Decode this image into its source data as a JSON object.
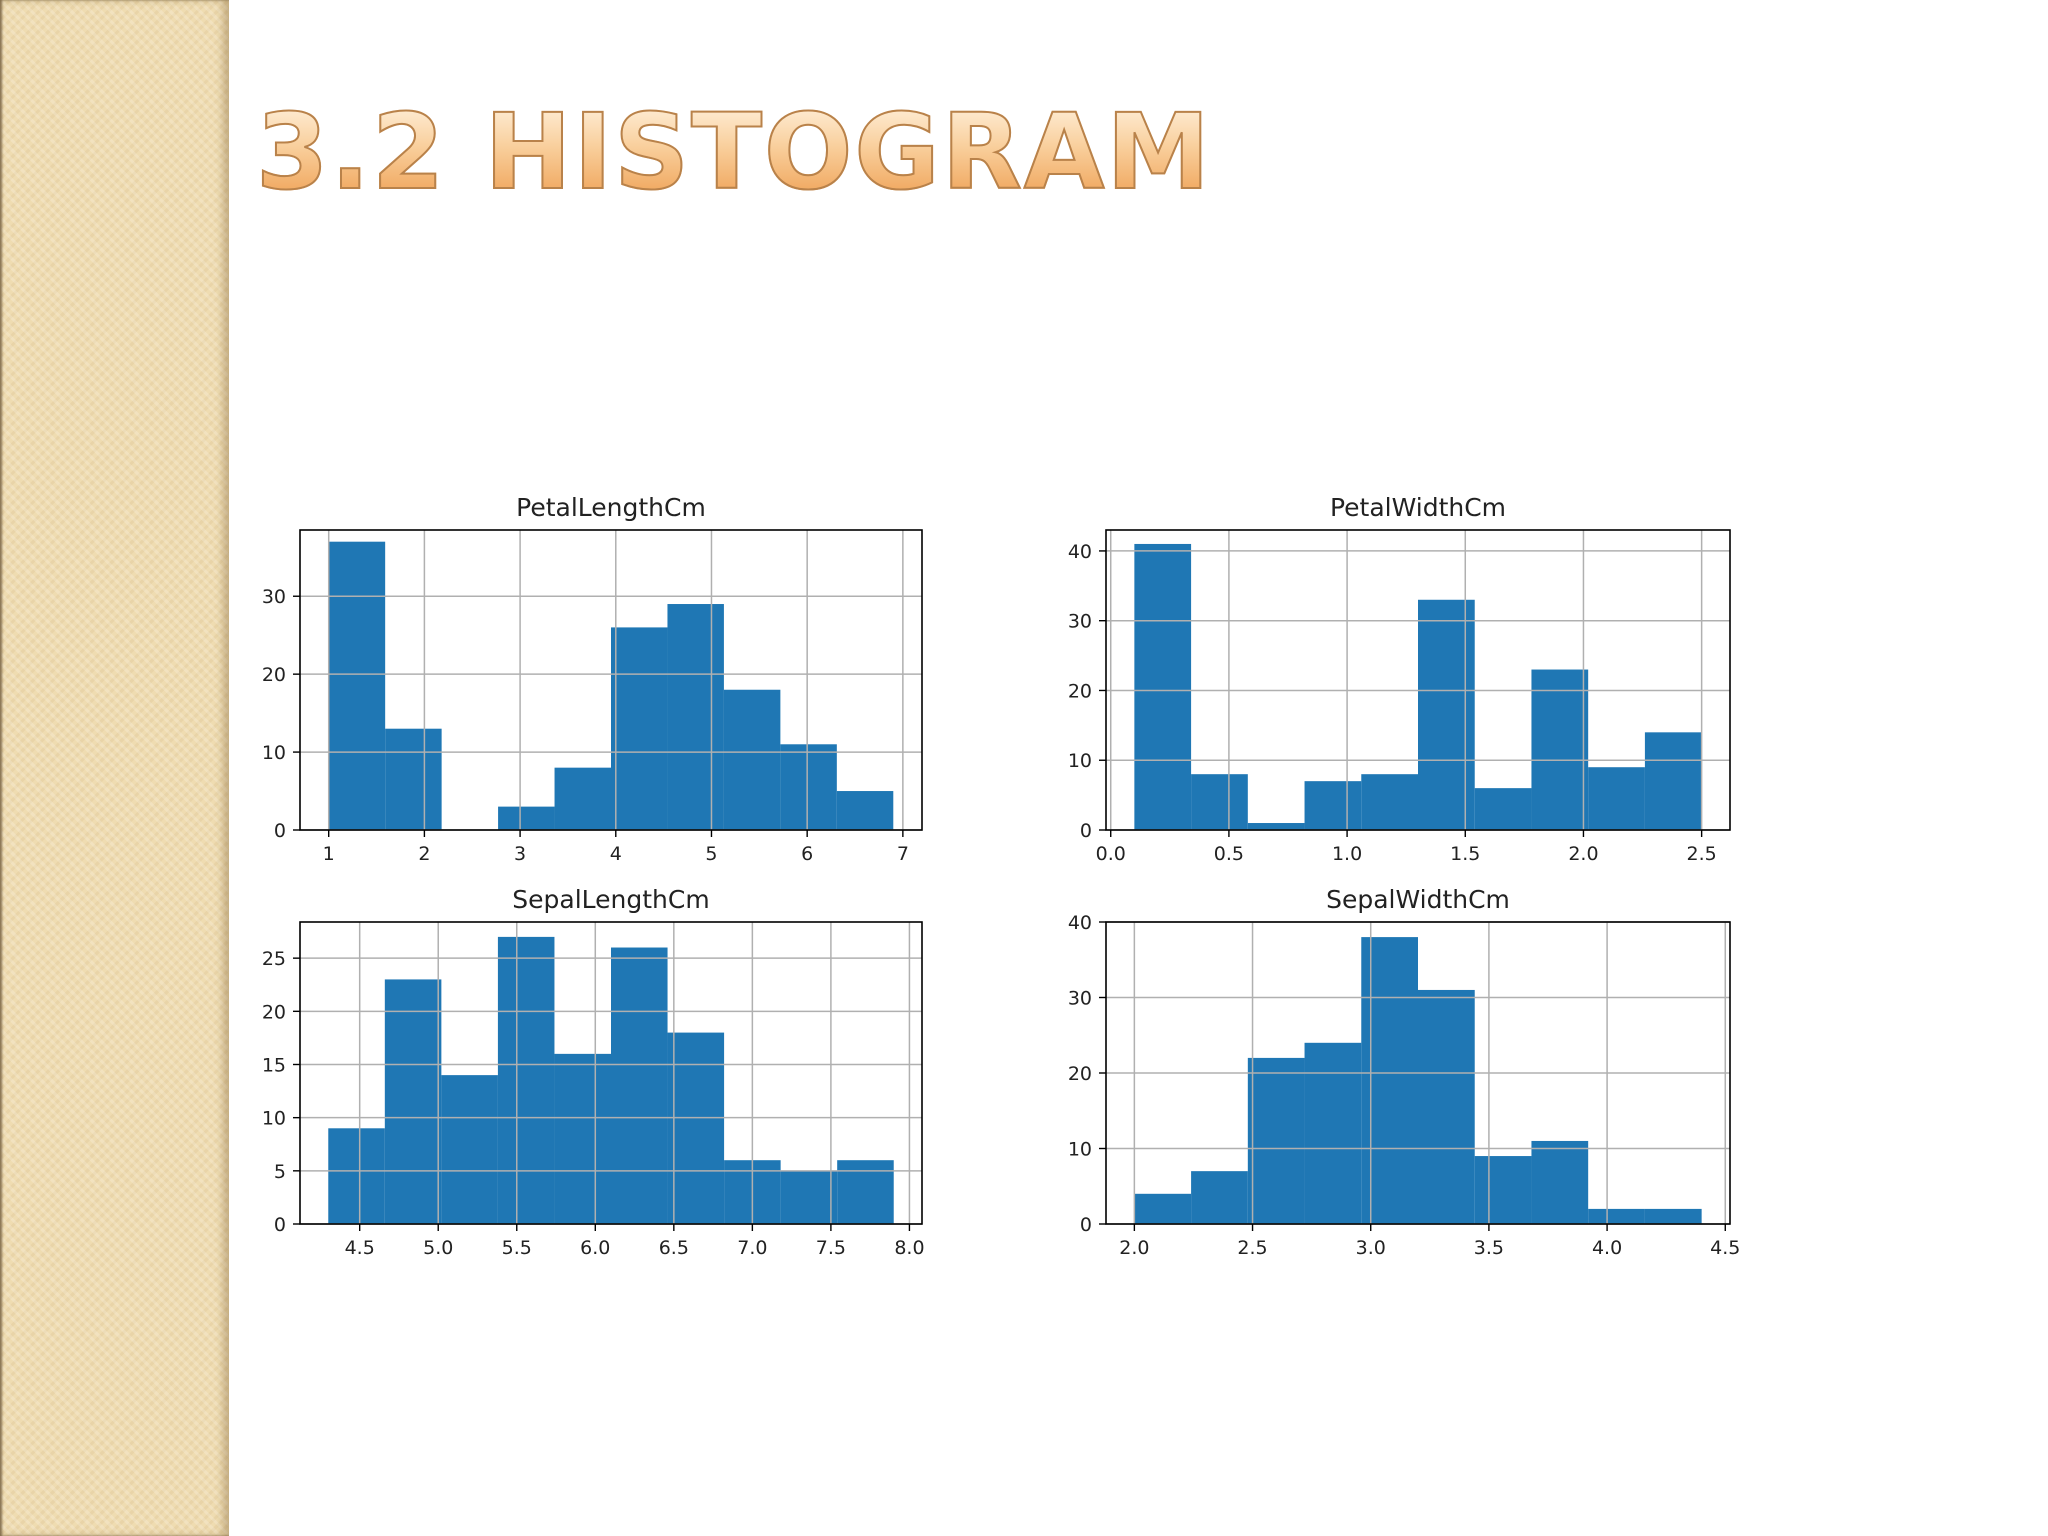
{
  "slide": {
    "title": "3.2 HISTOGRAM"
  },
  "colors": {
    "bar": "#1f77b4",
    "grid": "#b0b0b0",
    "axis": "#000000"
  },
  "chart_data": [
    {
      "type": "bar",
      "title": "PetalLengthCm",
      "grid": true,
      "bin_edges": [
        1.0,
        1.59,
        2.18,
        2.77,
        3.36,
        3.95,
        4.54,
        5.13,
        5.72,
        6.31,
        6.9
      ],
      "values": [
        37,
        13,
        0,
        3,
        8,
        26,
        29,
        18,
        11,
        5
      ],
      "xlim": [
        0.7,
        7.2
      ],
      "ylim": [
        0,
        38.5
      ],
      "xticks": [
        1,
        2,
        3,
        4,
        5,
        6,
        7
      ],
      "xtick_labels": [
        "1",
        "2",
        "3",
        "4",
        "5",
        "6",
        "7"
      ],
      "yticks": [
        0,
        10,
        20,
        30
      ],
      "ytick_labels": [
        "0",
        "10",
        "20",
        "30"
      ]
    },
    {
      "type": "bar",
      "title": "PetalWidthCm",
      "grid": true,
      "bin_edges": [
        0.1,
        0.34,
        0.58,
        0.82,
        1.06,
        1.3,
        1.54,
        1.78,
        2.02,
        2.26,
        2.5
      ],
      "values": [
        41,
        8,
        1,
        7,
        8,
        33,
        6,
        23,
        9,
        14
      ],
      "xlim": [
        -0.02,
        2.62
      ],
      "ylim": [
        0,
        43
      ],
      "xticks": [
        0.0,
        0.5,
        1.0,
        1.5,
        2.0,
        2.5
      ],
      "xtick_labels": [
        "0.0",
        "0.5",
        "1.0",
        "1.5",
        "2.0",
        "2.5"
      ],
      "yticks": [
        0,
        10,
        20,
        30,
        40
      ],
      "ytick_labels": [
        "0",
        "10",
        "20",
        "30",
        "40"
      ]
    },
    {
      "type": "bar",
      "title": "SepalLengthCm",
      "grid": true,
      "bin_edges": [
        4.3,
        4.66,
        5.02,
        5.38,
        5.74,
        6.1,
        6.46,
        6.82,
        7.18,
        7.54,
        7.9
      ],
      "values": [
        9,
        23,
        14,
        27,
        16,
        26,
        18,
        6,
        5,
        6
      ],
      "xlim": [
        4.12,
        8.08
      ],
      "ylim": [
        0,
        28.4
      ],
      "xticks": [
        4.5,
        5.0,
        5.5,
        6.0,
        6.5,
        7.0,
        7.5,
        8.0
      ],
      "xtick_labels": [
        "4.5",
        "5.0",
        "5.5",
        "6.0",
        "6.5",
        "7.0",
        "7.5",
        "8.0"
      ],
      "yticks": [
        0,
        5,
        10,
        15,
        20,
        25
      ],
      "ytick_labels": [
        "0",
        "5",
        "10",
        "15",
        "20",
        "25"
      ]
    },
    {
      "type": "bar",
      "title": "SepalWidthCm",
      "grid": true,
      "bin_edges": [
        2.0,
        2.24,
        2.48,
        2.72,
        2.96,
        3.2,
        3.44,
        3.68,
        3.92,
        4.16,
        4.4
      ],
      "values": [
        4,
        7,
        22,
        24,
        38,
        31,
        9,
        11,
        2,
        2
      ],
      "xlim": [
        1.88,
        4.52
      ],
      "ylim": [
        0,
        40
      ],
      "xticks": [
        2.0,
        2.5,
        3.0,
        3.5,
        4.0,
        4.5
      ],
      "xtick_labels": [
        "2.0",
        "2.5",
        "3.0",
        "3.5",
        "4.0",
        "4.5"
      ],
      "yticks": [
        0,
        10,
        20,
        30,
        40
      ],
      "ytick_labels": [
        "0",
        "10",
        "20",
        "30",
        "40"
      ]
    }
  ]
}
